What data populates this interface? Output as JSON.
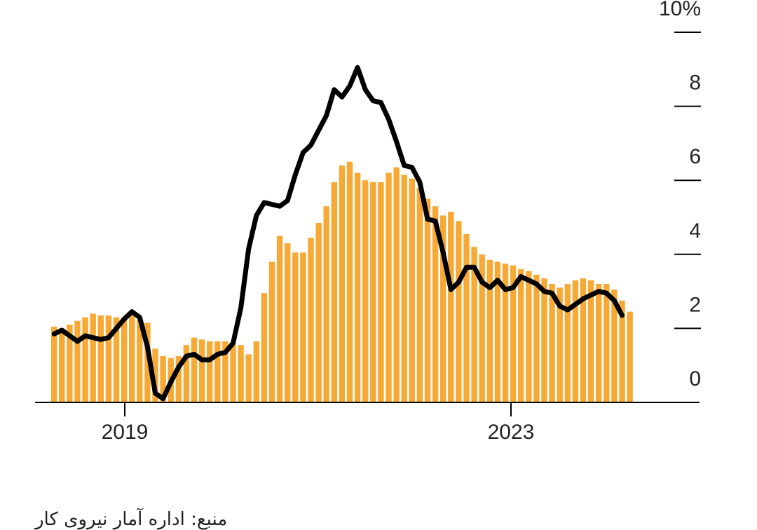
{
  "chart_data": {
    "type": "bar",
    "title": "",
    "xlabel": "",
    "ylabel": "",
    "ylim": [
      0,
      10
    ],
    "y_ticks": [
      0,
      2,
      4,
      6,
      8,
      10
    ],
    "y_tick_labels": [
      "0",
      "2",
      "4",
      "6",
      "8",
      "10%"
    ],
    "x_tick_labels": [
      "2019",
      "2023"
    ],
    "grid": false,
    "legend": "none",
    "x_start": "2018-01",
    "x_end": "2024-03",
    "colors": {
      "bars": "#f6a934",
      "line": "#000000",
      "axis": "#000000",
      "text": "#222222"
    },
    "series": [
      {
        "type": "bar",
        "values": [
          2.05,
          2.0,
          2.1,
          2.2,
          2.3,
          2.4,
          2.35,
          2.35,
          2.3,
          2.3,
          2.35,
          2.25,
          2.15,
          1.45,
          1.25,
          1.2,
          1.25,
          1.55,
          1.75,
          1.7,
          1.65,
          1.65,
          1.65,
          1.6,
          1.55,
          1.3,
          1.65,
          2.95,
          3.8,
          4.5,
          4.3,
          4.05,
          4.05,
          4.45,
          4.85,
          5.3,
          5.95,
          6.4,
          6.5,
          6.2,
          6.0,
          5.95,
          5.95,
          6.2,
          6.35,
          6.15,
          6.05,
          5.8,
          5.5,
          5.3,
          5.05,
          5.15,
          4.9,
          4.55,
          4.2,
          4.0,
          3.85,
          3.8,
          3.75,
          3.7,
          3.6,
          3.55,
          3.45,
          3.35,
          3.2,
          3.1,
          3.2,
          3.3,
          3.35,
          3.3,
          3.2,
          3.2,
          3.05,
          2.75,
          2.45
        ]
      },
      {
        "type": "line",
        "values": [
          1.85,
          1.95,
          1.8,
          1.65,
          1.8,
          1.75,
          1.7,
          1.75,
          2.0,
          2.25,
          2.45,
          2.3,
          1.5,
          0.25,
          0.1,
          0.55,
          0.95,
          1.25,
          1.3,
          1.15,
          1.15,
          1.3,
          1.35,
          1.6,
          2.55,
          4.15,
          5.05,
          5.4,
          5.35,
          5.3,
          5.45,
          6.15,
          6.75,
          6.95,
          7.35,
          7.75,
          8.45,
          8.25,
          8.55,
          9.05,
          8.45,
          8.15,
          8.1,
          7.65,
          7.05,
          6.4,
          6.35,
          5.95,
          4.95,
          4.9,
          4.05,
          3.05,
          3.25,
          3.65,
          3.65,
          3.25,
          3.1,
          3.3,
          3.05,
          3.1,
          3.4,
          3.3,
          3.2,
          3.0,
          2.95,
          2.6,
          2.5,
          2.65,
          2.8,
          2.9,
          3.0,
          2.95,
          2.75,
          2.35
        ]
      }
    ]
  },
  "source_note": "منبع: اداره آمار نیروی کار"
}
